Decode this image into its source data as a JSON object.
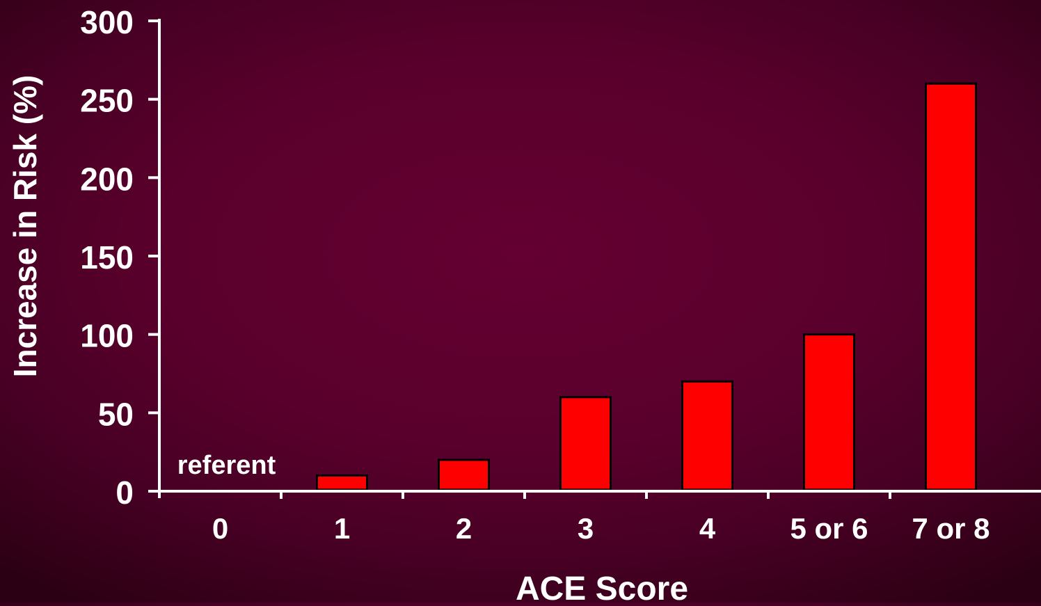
{
  "chart_data": {
    "type": "bar",
    "title": "",
    "xlabel": "ACE Score",
    "ylabel": "Increase in Risk (%)",
    "categories": [
      "0",
      "1",
      "2",
      "3",
      "4",
      "5 or 6",
      "7 or 8"
    ],
    "values": [
      0,
      10,
      20,
      60,
      70,
      100,
      260
    ],
    "ylim": [
      0,
      300
    ],
    "yticks": [
      "0",
      "50",
      "100",
      "150",
      "200",
      "250",
      "300"
    ],
    "annotations": [
      {
        "category": "0",
        "text": "referent"
      }
    ],
    "grid": false,
    "legend": "none",
    "colors": {
      "bar_fill": "#ff0000",
      "bar_stroke": "#000000",
      "axis": "#ffffff",
      "text": "#ffffff"
    }
  }
}
